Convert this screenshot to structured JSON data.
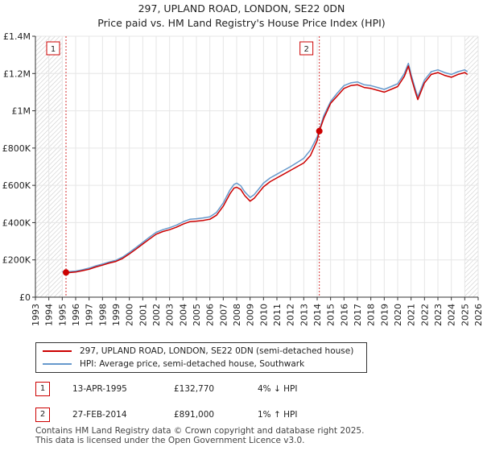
{
  "chart_data": {
    "type": "line",
    "title": "297, UPLAND ROAD, LONDON, SE22 0DN",
    "subtitle": "Price paid vs. HM Land Registry's House Price Index (HPI)",
    "xlim": [
      1993,
      2026
    ],
    "ylim": [
      0,
      1400000
    ],
    "y_ticks": [
      0,
      200000,
      400000,
      600000,
      800000,
      1000000,
      1200000,
      1400000
    ],
    "y_tick_labels": [
      "£0",
      "£200K",
      "£400K",
      "£600K",
      "£800K",
      "£1M",
      "£1.2M",
      "£1.4M"
    ],
    "x_ticks": [
      1993,
      1994,
      1995,
      1996,
      1997,
      1998,
      1999,
      2000,
      2001,
      2002,
      2003,
      2004,
      2005,
      2006,
      2007,
      2008,
      2009,
      2010,
      2011,
      2012,
      2013,
      2014,
      2015,
      2016,
      2017,
      2018,
      2019,
      2020,
      2021,
      2022,
      2023,
      2024,
      2025,
      2026
    ],
    "x_tick_labels": [
      "1993",
      "1994",
      "1995",
      "1996",
      "1997",
      "1998",
      "1999",
      "2000",
      "2001",
      "2002",
      "2003",
      "2004",
      "2005",
      "2006",
      "2007",
      "2008",
      "2009",
      "2010",
      "2011",
      "2012",
      "2013",
      "2014",
      "2015",
      "2016",
      "2017",
      "2018",
      "2019",
      "2020",
      "2021",
      "2022",
      "2023",
      "2024",
      "2025",
      "2026"
    ],
    "hpi_color": "#6699cc",
    "price_color": "#cc0000",
    "series": [
      {
        "name": "297, UPLAND ROAD, LONDON, SE22 0DN (semi-detached house)",
        "color": "#cc0000",
        "points": [
          [
            1995.28,
            132770
          ],
          [
            1995.5,
            132000
          ],
          [
            1996.0,
            135000
          ],
          [
            1996.5,
            142000
          ],
          [
            1997.0,
            150000
          ],
          [
            1997.5,
            162000
          ],
          [
            1998.0,
            172000
          ],
          [
            1998.5,
            183000
          ],
          [
            1999.0,
            192000
          ],
          [
            1999.5,
            208000
          ],
          [
            2000.0,
            232000
          ],
          [
            2000.5,
            258000
          ],
          [
            2001.0,
            285000
          ],
          [
            2001.5,
            312000
          ],
          [
            2002.0,
            338000
          ],
          [
            2002.5,
            352000
          ],
          [
            2003.0,
            362000
          ],
          [
            2003.5,
            375000
          ],
          [
            2004.0,
            392000
          ],
          [
            2004.5,
            405000
          ],
          [
            2005.0,
            408000
          ],
          [
            2005.5,
            412000
          ],
          [
            2006.0,
            418000
          ],
          [
            2006.5,
            440000
          ],
          [
            2007.0,
            488000
          ],
          [
            2007.5,
            555000
          ],
          [
            2007.8,
            585000
          ],
          [
            2008.0,
            590000
          ],
          [
            2008.3,
            578000
          ],
          [
            2008.6,
            545000
          ],
          [
            2009.0,
            515000
          ],
          [
            2009.3,
            530000
          ],
          [
            2009.7,
            565000
          ],
          [
            2010.0,
            592000
          ],
          [
            2010.5,
            620000
          ],
          [
            2011.0,
            640000
          ],
          [
            2011.5,
            660000
          ],
          [
            2012.0,
            680000
          ],
          [
            2012.5,
            700000
          ],
          [
            2013.0,
            720000
          ],
          [
            2013.5,
            760000
          ],
          [
            2014.0,
            840000
          ],
          [
            2014.16,
            891000
          ],
          [
            2014.5,
            960000
          ],
          [
            2015.0,
            1040000
          ],
          [
            2015.5,
            1080000
          ],
          [
            2016.0,
            1120000
          ],
          [
            2016.5,
            1135000
          ],
          [
            2017.0,
            1140000
          ],
          [
            2017.5,
            1125000
          ],
          [
            2018.0,
            1120000
          ],
          [
            2018.5,
            1110000
          ],
          [
            2019.0,
            1100000
          ],
          [
            2019.5,
            1115000
          ],
          [
            2020.0,
            1130000
          ],
          [
            2020.5,
            1185000
          ],
          [
            2020.8,
            1240000
          ],
          [
            2021.0,
            1180000
          ],
          [
            2021.3,
            1105000
          ],
          [
            2021.5,
            1060000
          ],
          [
            2022.0,
            1150000
          ],
          [
            2022.5,
            1195000
          ],
          [
            2023.0,
            1205000
          ],
          [
            2023.5,
            1190000
          ],
          [
            2024.0,
            1180000
          ],
          [
            2024.5,
            1195000
          ],
          [
            2025.0,
            1205000
          ],
          [
            2025.2,
            1195000
          ]
        ]
      },
      {
        "name": "HPI: Average price, semi-detached house, Southwark",
        "color": "#6699cc",
        "points": [
          [
            1995.0,
            136000
          ],
          [
            1995.5,
            137000
          ],
          [
            1996.0,
            140000
          ],
          [
            1996.5,
            147000
          ],
          [
            1997.0,
            156000
          ],
          [
            1997.5,
            168000
          ],
          [
            1998.0,
            178000
          ],
          [
            1998.5,
            189000
          ],
          [
            1999.0,
            198000
          ],
          [
            1999.5,
            215000
          ],
          [
            2000.0,
            240000
          ],
          [
            2000.5,
            266000
          ],
          [
            2001.0,
            294000
          ],
          [
            2001.5,
            322000
          ],
          [
            2002.0,
            348000
          ],
          [
            2002.5,
            362000
          ],
          [
            2003.0,
            373000
          ],
          [
            2003.5,
            386000
          ],
          [
            2004.0,
            404000
          ],
          [
            2004.5,
            418000
          ],
          [
            2005.0,
            421000
          ],
          [
            2005.5,
            425000
          ],
          [
            2006.0,
            431000
          ],
          [
            2006.5,
            455000
          ],
          [
            2007.0,
            505000
          ],
          [
            2007.5,
            575000
          ],
          [
            2007.8,
            605000
          ],
          [
            2008.0,
            612000
          ],
          [
            2008.3,
            598000
          ],
          [
            2008.6,
            565000
          ],
          [
            2009.0,
            535000
          ],
          [
            2009.3,
            550000
          ],
          [
            2009.7,
            585000
          ],
          [
            2010.0,
            612000
          ],
          [
            2010.5,
            640000
          ],
          [
            2011.0,
            660000
          ],
          [
            2011.5,
            680000
          ],
          [
            2012.0,
            700000
          ],
          [
            2012.5,
            722000
          ],
          [
            2013.0,
            745000
          ],
          [
            2013.5,
            790000
          ],
          [
            2014.0,
            860000
          ],
          [
            2014.5,
            975000
          ],
          [
            2015.0,
            1050000
          ],
          [
            2015.5,
            1095000
          ],
          [
            2016.0,
            1135000
          ],
          [
            2016.5,
            1150000
          ],
          [
            2017.0,
            1155000
          ],
          [
            2017.5,
            1140000
          ],
          [
            2018.0,
            1135000
          ],
          [
            2018.5,
            1125000
          ],
          [
            2019.0,
            1115000
          ],
          [
            2019.5,
            1130000
          ],
          [
            2020.0,
            1145000
          ],
          [
            2020.5,
            1200000
          ],
          [
            2020.8,
            1255000
          ],
          [
            2021.0,
            1195000
          ],
          [
            2021.3,
            1120000
          ],
          [
            2021.5,
            1075000
          ],
          [
            2022.0,
            1165000
          ],
          [
            2022.5,
            1210000
          ],
          [
            2023.0,
            1220000
          ],
          [
            2023.5,
            1205000
          ],
          [
            2024.0,
            1195000
          ],
          [
            2024.5,
            1210000
          ],
          [
            2025.0,
            1220000
          ],
          [
            2025.2,
            1210000
          ]
        ]
      }
    ],
    "sales": [
      {
        "label": "1",
        "x": 1995.28,
        "y": 132770
      },
      {
        "label": "2",
        "x": 2014.16,
        "y": 891000
      }
    ],
    "hatch_until": 1995.0,
    "hatch_from": 2025.0
  },
  "legend": {
    "price_label": "297, UPLAND ROAD, LONDON, SE22 0DN (semi-detached house)",
    "hpi_label": "HPI: Average price, semi-detached house, Southwark"
  },
  "transactions": [
    {
      "num": "1",
      "date": "13-APR-1995",
      "price": "£132,770",
      "hpi": "4% ↓ HPI"
    },
    {
      "num": "2",
      "date": "27-FEB-2014",
      "price": "£891,000",
      "hpi": "1% ↑ HPI"
    }
  ],
  "footer": {
    "line1": "Contains HM Land Registry data © Crown copyright and database right 2025.",
    "line2": "This data is licensed under the Open Government Licence v3.0."
  }
}
